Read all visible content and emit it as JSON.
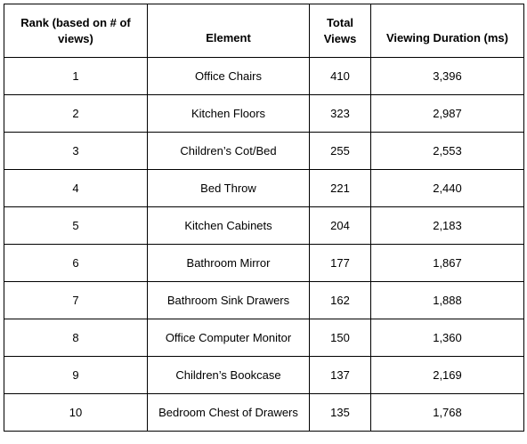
{
  "table": {
    "headers": {
      "rank": "Rank (based on # of views)",
      "element": "Element",
      "views": "Total Views",
      "duration": "Viewing Duration (ms)"
    },
    "rows": [
      {
        "rank": "1",
        "element": "Office Chairs",
        "views": "410",
        "duration": "3,396"
      },
      {
        "rank": "2",
        "element": "Kitchen Floors",
        "views": "323",
        "duration": "2,987"
      },
      {
        "rank": "3",
        "element": "Children’s Cot/Bed",
        "views": "255",
        "duration": "2,553"
      },
      {
        "rank": "4",
        "element": "Bed Throw",
        "views": "221",
        "duration": "2,440"
      },
      {
        "rank": "5",
        "element": "Kitchen Cabinets",
        "views": "204",
        "duration": "2,183"
      },
      {
        "rank": "6",
        "element": "Bathroom Mirror",
        "views": "177",
        "duration": "1,867"
      },
      {
        "rank": "7",
        "element": "Bathroom Sink Drawers",
        "views": "162",
        "duration": "1,888"
      },
      {
        "rank": "8",
        "element": "Office Computer Monitor",
        "views": "150",
        "duration": "1,360"
      },
      {
        "rank": "9",
        "element": "Children’s Bookcase",
        "views": "137",
        "duration": "2,169"
      },
      {
        "rank": "10",
        "element": "Bedroom Chest of Drawers",
        "views": "135",
        "duration": "1,768"
      }
    ]
  }
}
